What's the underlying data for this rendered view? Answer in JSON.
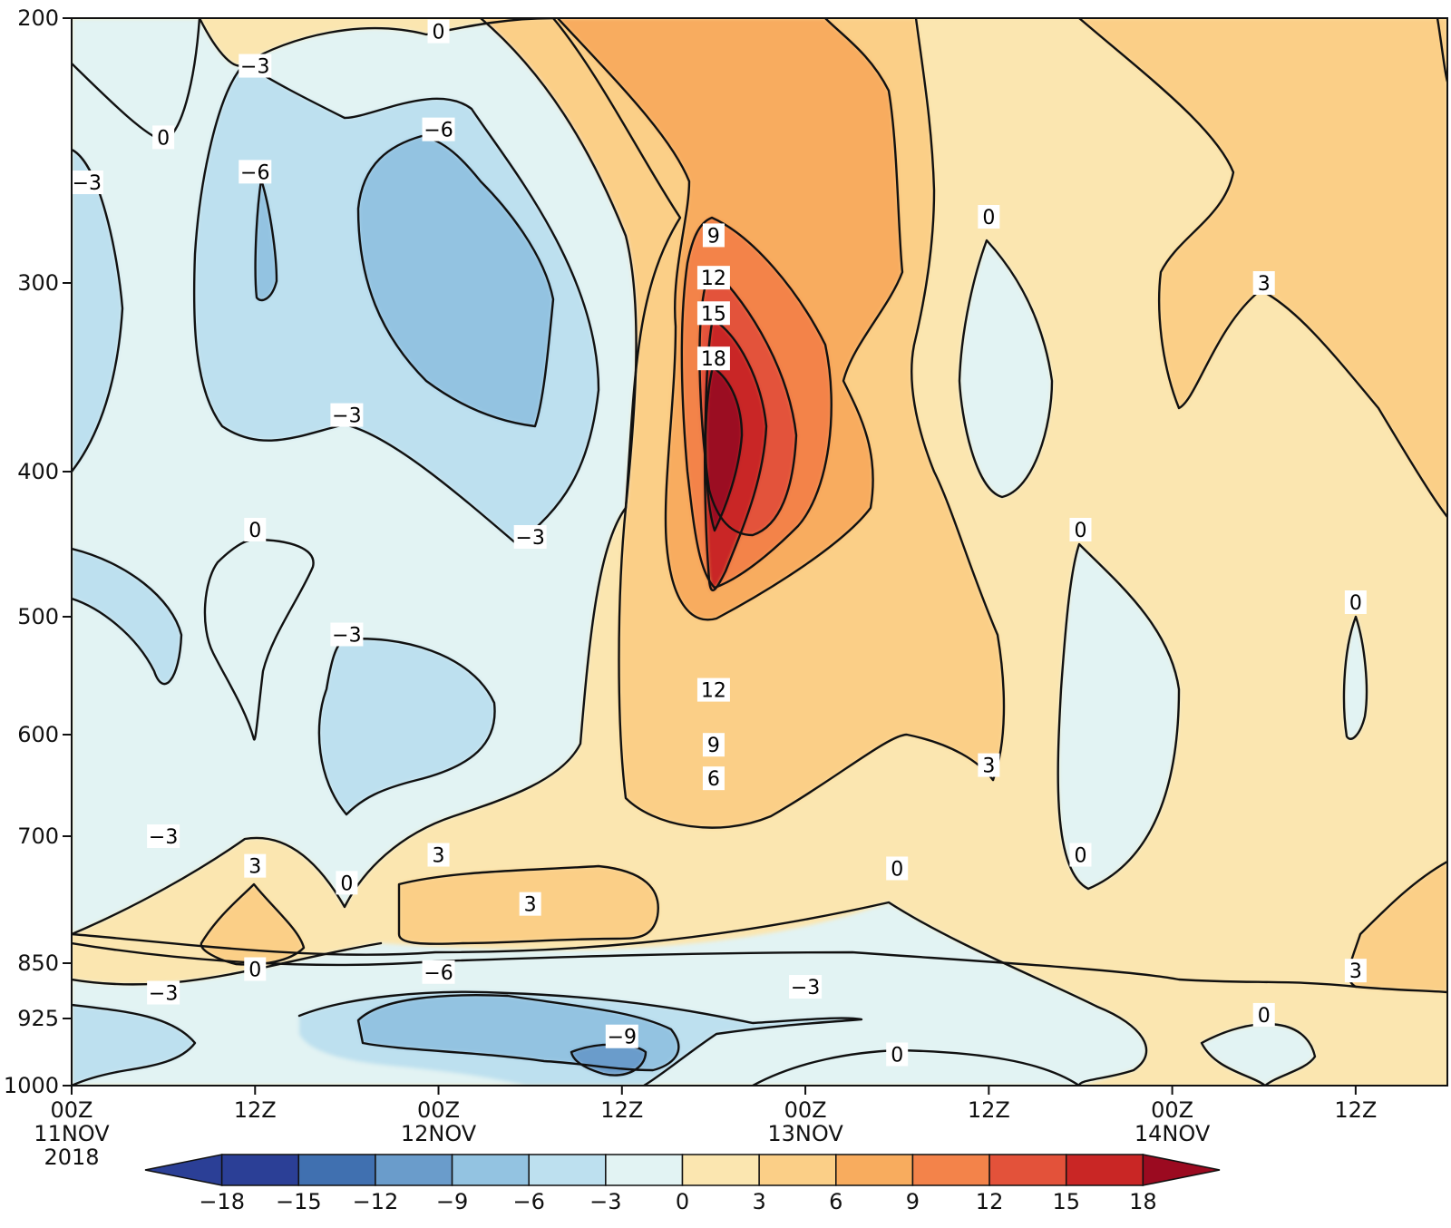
{
  "chart_data": {
    "type": "contour",
    "title": "",
    "xlabel": "",
    "ylabel": "",
    "x_axis": {
      "ticks": [
        {
          "hours": 0,
          "label": [
            "00Z",
            "11NOV",
            "2018"
          ]
        },
        {
          "hours": 12,
          "label": [
            "12Z"
          ]
        },
        {
          "hours": 24,
          "label": [
            "00Z",
            "12NOV"
          ]
        },
        {
          "hours": 36,
          "label": [
            "12Z"
          ]
        },
        {
          "hours": 48,
          "label": [
            "00Z",
            "13NOV"
          ]
        },
        {
          "hours": 60,
          "label": [
            "12Z"
          ]
        },
        {
          "hours": 72,
          "label": [
            "00Z",
            "14NOV"
          ]
        },
        {
          "hours": 84,
          "label": [
            "12Z"
          ]
        }
      ],
      "range_hours": [
        0,
        90
      ]
    },
    "y_axis": {
      "unit": "hPa",
      "ticks": [
        "200",
        "300",
        "400",
        "500",
        "600",
        "700",
        "850",
        "925",
        "1000"
      ],
      "range": [
        200,
        1000
      ],
      "direction": "pressure increasing downward"
    },
    "contour_levels": [
      -18,
      -15,
      -12,
      -9,
      -6,
      -3,
      0,
      3,
      6,
      9,
      12,
      15,
      18
    ],
    "colorbar": {
      "labels": [
        "-18",
        "-15",
        "-12",
        "-9",
        "-6",
        "-3",
        "0",
        "3",
        "6",
        "9",
        "12",
        "15",
        "18"
      ],
      "colors": [
        "#2b3f96",
        "#4070b0",
        "#6a9ccb",
        "#93c3e1",
        "#bde0ef",
        "#e2f3f3",
        "#fbe6b0",
        "#fbcf87",
        "#f8ac5e",
        "#f3834a",
        "#e3523a",
        "#c92625",
        "#9b0a20"
      ],
      "extend": "both",
      "orientation": "horizontal"
    },
    "features": [
      {
        "kind": "maximum",
        "value": 18,
        "time_hours": 42,
        "pressure_hPa": 380
      },
      {
        "kind": "minimum",
        "value": -9,
        "time_hours": 36,
        "pressure_hPa": 950
      },
      {
        "kind": "minimum",
        "value": -6,
        "time_hours": 24,
        "pressure_hPa": 300
      }
    ],
    "contour_labels": [
      {
        "text": "0",
        "time_hours": 24,
        "pressure_hPa": 205
      },
      {
        "text": "−3",
        "time_hours": 12,
        "pressure_hPa": 218
      },
      {
        "text": "0",
        "time_hours": 6,
        "pressure_hPa": 245
      },
      {
        "text": "−3",
        "time_hours": 1,
        "pressure_hPa": 262
      },
      {
        "text": "−6",
        "time_hours": 24,
        "pressure_hPa": 242
      },
      {
        "text": "−6",
        "time_hours": 12,
        "pressure_hPa": 258
      },
      {
        "text": "−3",
        "time_hours": 18,
        "pressure_hPa": 370
      },
      {
        "text": "−3",
        "time_hours": 30,
        "pressure_hPa": 445
      },
      {
        "text": "0",
        "time_hours": 12,
        "pressure_hPa": 440
      },
      {
        "text": "−3",
        "time_hours": 18,
        "pressure_hPa": 515
      },
      {
        "text": "−3",
        "time_hours": 6,
        "pressure_hPa": 700
      },
      {
        "text": "3",
        "time_hours": 12,
        "pressure_hPa": 735
      },
      {
        "text": "0",
        "time_hours": 18,
        "pressure_hPa": 755
      },
      {
        "text": "3",
        "time_hours": 24,
        "pressure_hPa": 722
      },
      {
        "text": "3",
        "time_hours": 30,
        "pressure_hPa": 780
      },
      {
        "text": "0",
        "time_hours": 12,
        "pressure_hPa": 858
      },
      {
        "text": "−6",
        "time_hours": 24,
        "pressure_hPa": 862
      },
      {
        "text": "−3",
        "time_hours": 6,
        "pressure_hPa": 890
      },
      {
        "text": "−9",
        "time_hours": 36,
        "pressure_hPa": 945
      },
      {
        "text": "9",
        "time_hours": 42,
        "pressure_hPa": 282
      },
      {
        "text": "12",
        "time_hours": 42,
        "pressure_hPa": 298
      },
      {
        "text": "15",
        "time_hours": 42,
        "pressure_hPa": 316
      },
      {
        "text": "18",
        "time_hours": 42,
        "pressure_hPa": 340
      },
      {
        "text": "12",
        "time_hours": 42,
        "pressure_hPa": 562
      },
      {
        "text": "9",
        "time_hours": 42,
        "pressure_hPa": 610
      },
      {
        "text": "6",
        "time_hours": 42,
        "pressure_hPa": 643
      },
      {
        "text": "−3",
        "time_hours": 48,
        "pressure_hPa": 882
      },
      {
        "text": "0",
        "time_hours": 54,
        "pressure_hPa": 965
      },
      {
        "text": "0",
        "time_hours": 54,
        "pressure_hPa": 738
      },
      {
        "text": "0",
        "time_hours": 60,
        "pressure_hPa": 275
      },
      {
        "text": "3",
        "time_hours": 60,
        "pressure_hPa": 630
      },
      {
        "text": "0",
        "time_hours": 66,
        "pressure_hPa": 440
      },
      {
        "text": "0",
        "time_hours": 66,
        "pressure_hPa": 722
      },
      {
        "text": "3",
        "time_hours": 78,
        "pressure_hPa": 300
      },
      {
        "text": "0",
        "time_hours": 84,
        "pressure_hPa": 490
      },
      {
        "text": "0",
        "time_hours": 78,
        "pressure_hPa": 920
      },
      {
        "text": "3",
        "time_hours": 84,
        "pressure_hPa": 860
      }
    ]
  }
}
